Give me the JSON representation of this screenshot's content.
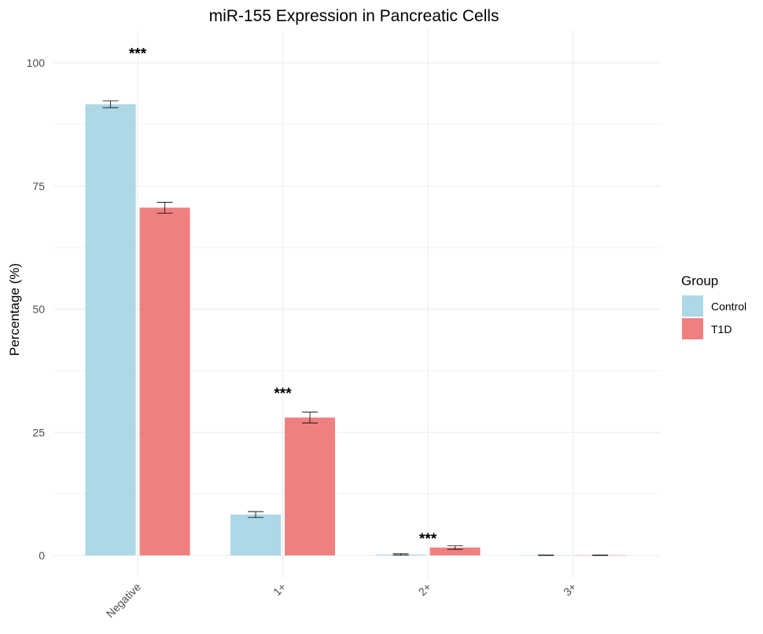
{
  "chart_data": {
    "type": "bar",
    "title": "miR-155 Expression in Pancreatic Cells",
    "xlabel": "",
    "ylabel": "Percentage (%)",
    "ylim": [
      0,
      100
    ],
    "yticks": [
      0,
      25,
      50,
      75,
      100
    ],
    "grid": true,
    "categories": [
      "Negative",
      "1+",
      "2+",
      "3+"
    ],
    "series": [
      {
        "name": "Control",
        "color": "#ADD8E6",
        "values": [
          91.6,
          8.3,
          0.2,
          0.05
        ],
        "errors": [
          0.7,
          0.6,
          0.15,
          0.05
        ]
      },
      {
        "name": "T1D",
        "color": "#F08080",
        "values": [
          70.6,
          28.0,
          1.6,
          0.05
        ],
        "errors": [
          1.1,
          1.1,
          0.35,
          0.05
        ]
      }
    ],
    "annotations": [
      {
        "category": "Negative",
        "text": "***",
        "y": 102
      },
      {
        "category": "1+",
        "text": "***",
        "y": 33
      },
      {
        "category": "2+",
        "text": "***",
        "y": 3.5
      }
    ],
    "legend": {
      "title": "Group",
      "position": "right"
    }
  }
}
